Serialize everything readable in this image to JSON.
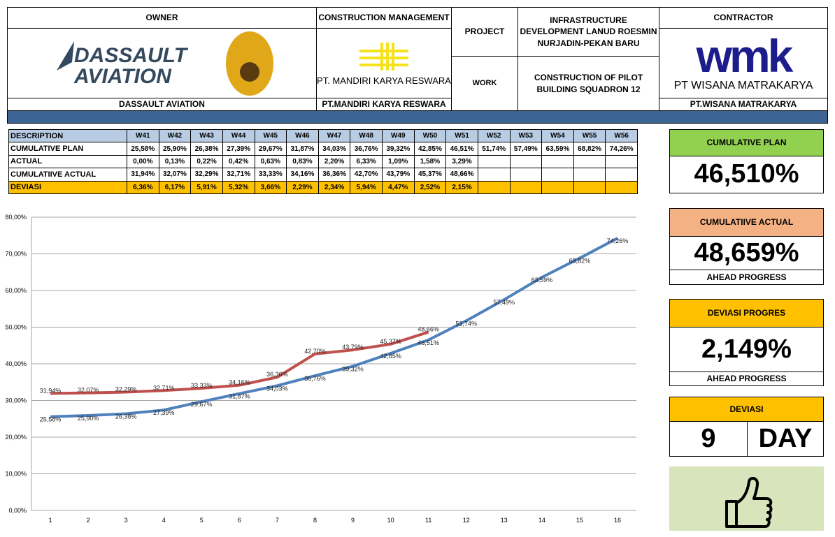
{
  "header": {
    "owner": {
      "label": "OWNER",
      "logo_text": [
        "DASSAULT",
        "AVIATION"
      ],
      "name": "DASSAULT AVIATION"
    },
    "construction_management": {
      "label": "CONSTRUCTION MANAGEMENT",
      "logo_text": "PT. MANDIRI KARYA RESWARA",
      "name": "PT.MANDIRI KARYA RESWARA"
    },
    "project": {
      "label": "PROJECT",
      "value": "INFRASTRUCTURE DEVELOPMENT LANUD ROESMIN NURJADIN-PEKAN BARU"
    },
    "work": {
      "label": "WORK",
      "value": "CONSTRUCTION OF PILOT BUILDING SQUADRON 12"
    },
    "contractor": {
      "label": "CONTRACTOR",
      "logo_text": "wmk",
      "logo_subtext": "PT WISANA MATRAKARYA",
      "name": "PT.WISANA MATRAKARYA"
    }
  },
  "table": {
    "header": [
      "DESCRIPTION",
      "W41",
      "W42",
      "W43",
      "W44",
      "W45",
      "W46",
      "W47",
      "W48",
      "W49",
      "W50",
      "W51",
      "W52",
      "W53",
      "W54",
      "W55",
      "W56"
    ],
    "rows": [
      [
        "CUMULATIVE PLAN",
        "25,58%",
        "25,90%",
        "26,38%",
        "27,39%",
        "29,67%",
        "31,87%",
        "34,03%",
        "36,76%",
        "39,32%",
        "42,85%",
        "46,51%",
        "51,74%",
        "57,49%",
        "63,59%",
        "68,82%",
        "74,26%"
      ],
      [
        "ACTUAL",
        "0,00%",
        "0,13%",
        "0,22%",
        "0,42%",
        "0,63%",
        "0,83%",
        "2,20%",
        "6,33%",
        "1,09%",
        "1,58%",
        "3,29%"
      ],
      [
        "CUMULATIIVE ACTUAL",
        "31,94%",
        "32,07%",
        "32,29%",
        "32,71%",
        "33,33%",
        "34,16%",
        "36,36%",
        "42,70%",
        "43,79%",
        "45,37%",
        "48,66%"
      ],
      [
        "DEVIASI",
        "6,36%",
        "6,17%",
        "5,91%",
        "5,32%",
        "3,66%",
        "2,29%",
        "2,34%",
        "5,94%",
        "4,47%",
        "2,52%",
        "2,15%"
      ]
    ]
  },
  "kpis": {
    "cumulative_plan": {
      "label": "CUMULATIVE PLAN",
      "value": "46,510%"
    },
    "cumulative_actual": {
      "label": "CUMULATIIVE ACTUAL",
      "value": "48,659%",
      "note": "AHEAD PROGRESS"
    },
    "deviasi_progres": {
      "label": "DEVIASI PROGRES",
      "value": "2,149%",
      "note": "AHEAD PROGRESS"
    },
    "deviasi": {
      "label": "DEVIASI",
      "value": "9",
      "unit": "DAY"
    }
  },
  "chart_data": {
    "type": "line",
    "categories": [
      "1",
      "2",
      "3",
      "4",
      "5",
      "6",
      "7",
      "8",
      "9",
      "10",
      "11",
      "12",
      "13",
      "14",
      "15",
      "16"
    ],
    "series": [
      {
        "color": "#4f81bd",
        "values": [
          25.58,
          25.9,
          26.38,
          27.39,
          29.67,
          31.87,
          34.03,
          36.76,
          39.32,
          42.85,
          46.51,
          51.74,
          57.49,
          63.59,
          68.82,
          74.26
        ],
        "value_labels": [
          "25,58%",
          "25,90%",
          "26,38%",
          "27,39%",
          "29,67%",
          "31,87%",
          "34,03%",
          "36,76%",
          "39,32%",
          "42,85%",
          "46,51%",
          "51,74%",
          "57,49%",
          "63,59%",
          "68,82%",
          "74,26%"
        ]
      },
      {
        "color": "#c0504d",
        "values": [
          31.94,
          32.07,
          32.29,
          32.71,
          33.33,
          34.16,
          36.36,
          42.7,
          43.79,
          45.37,
          48.66,
          null,
          null,
          null,
          null,
          null
        ],
        "value_labels": [
          "31,94%",
          "32,07%",
          "32,29%",
          "32,71%",
          "33,33%",
          "34,16%",
          "36,36%",
          "42,70%",
          "43,79%",
          "45,37%",
          "48,66%",
          null,
          null,
          null,
          null,
          null
        ]
      }
    ],
    "ylim": [
      0,
      80
    ],
    "yticks": [
      {
        "value": 0,
        "label": "0,00%"
      },
      {
        "value": 10,
        "label": "10,00%"
      },
      {
        "value": 20,
        "label": "20,00%"
      },
      {
        "value": 30,
        "label": "30,00%"
      },
      {
        "value": 40,
        "label": "40,00%"
      },
      {
        "value": 50,
        "label": "50,00%"
      },
      {
        "value": 60,
        "label": "60,00%"
      },
      {
        "value": 70,
        "label": "70,00%"
      },
      {
        "value": 80,
        "label": "80,00%"
      }
    ],
    "grid": true
  }
}
